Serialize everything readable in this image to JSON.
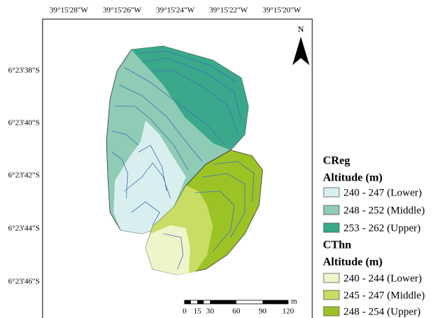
{
  "top_labels": [
    "39°15'28\"W",
    "39°15'26\"W",
    "39°15'24\"W",
    "39°15'22\"W",
    "39°15'20\"W"
  ],
  "left_labels": [
    "6°23'38\"S",
    "6°23'40\"S",
    "6°23'42\"S",
    "6°23'44\"S",
    "6°23'46\"S"
  ],
  "north": "N",
  "scale": {
    "ticks": [
      0,
      15,
      30,
      60,
      90,
      120
    ],
    "unit": "m"
  },
  "legend": [
    {
      "title": "CReg",
      "subtitle": "Altitude (m)",
      "items": [
        "240 - 247 (Lower)",
        "248 - 252 (Middle)",
        "253 - 262 (Upper)"
      ]
    },
    {
      "title": "CThn",
      "subtitle": "Altitude (m)",
      "items": [
        "240 - 244 (Lower)",
        "245 - 247 (Middle)",
        "248 - 254 (Upper)"
      ]
    }
  ]
}
